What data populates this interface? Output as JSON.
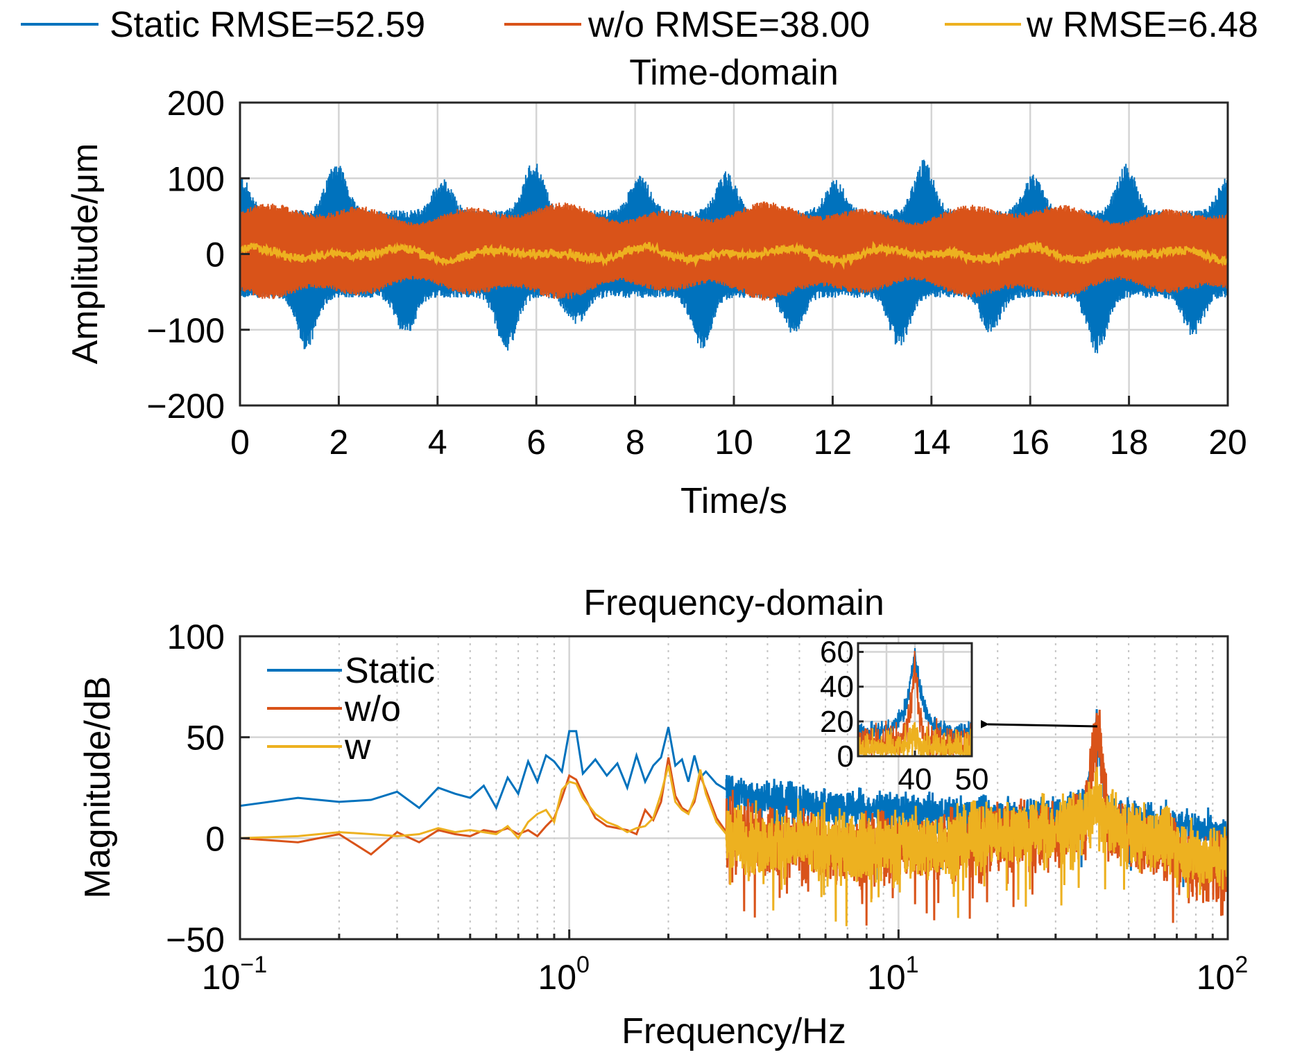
{
  "colors": {
    "static": "#0072BD",
    "wo": "#D95319",
    "w": "#EDB120",
    "axis": "#262626",
    "grid": "#d4d4d4"
  },
  "top_legend": [
    {
      "label": "Static RMSE=52.59",
      "color": "#0072BD"
    },
    {
      "label": "w/o RMSE=38.00",
      "color": "#D95319"
    },
    {
      "label": "w RMSE=6.48",
      "color": "#EDB120"
    }
  ],
  "chart_data": [
    {
      "type": "line",
      "title": "Time-domain",
      "xlabel": "Time/s",
      "ylabel": "Amplitude/μm",
      "xlim": [
        0,
        20
      ],
      "ylim": [
        -200,
        200
      ],
      "xticks": [
        "0",
        "2",
        "4",
        "6",
        "8",
        "10",
        "12",
        "14",
        "16",
        "18",
        "20"
      ],
      "yticks": [
        "200",
        "100",
        "0",
        "−100",
        "−200"
      ],
      "grid": true,
      "legend_position": "top",
      "series": [
        {
          "name": "Static",
          "rmse": 52.59,
          "envelope_peaks_x": [
            0.0,
            1.35,
            1.95,
            3.35,
            4.1,
            5.4,
            5.95,
            6.8,
            8.1,
            9.35,
            9.85,
            11.2,
            12.05,
            13.35,
            13.85,
            15.2,
            16.05,
            17.35,
            17.95,
            19.3,
            20.0
          ],
          "envelope_peaks_y": [
            105,
            -128,
            125,
            -108,
            100,
            -128,
            125,
            -95,
            108,
            -125,
            110,
            -108,
            100,
            -125,
            125,
            -105,
            105,
            -132,
            120,
            -110,
            105
          ],
          "typical_band": [
            -60,
            60
          ]
        },
        {
          "name": "w/o",
          "rmse": 38.0,
          "typical_band": [
            -60,
            65
          ]
        },
        {
          "name": "w",
          "rmse": 6.48,
          "typical_band": [
            -15,
            20
          ]
        }
      ]
    },
    {
      "type": "line",
      "title": "Frequency-domain",
      "xlabel": "Frequency/Hz",
      "ylabel": "Magnitude/dB",
      "xscale": "log",
      "xlim": [
        0.1,
        100
      ],
      "ylim": [
        -50,
        100
      ],
      "xticks": [
        {
          "base": "10",
          "exp": "−1"
        },
        {
          "base": "10",
          "exp": "0"
        },
        {
          "base": "10",
          "exp": "1"
        },
        {
          "base": "10",
          "exp": "2"
        }
      ],
      "yticks": [
        "100",
        "50",
        "0",
        "−50"
      ],
      "grid": true,
      "legend_position": "top-left",
      "series": [
        {
          "name": "Static",
          "x": [
            0.1,
            0.15,
            0.2,
            0.25,
            0.3,
            0.35,
            0.4,
            0.45,
            0.5,
            0.55,
            0.6,
            0.65,
            0.7,
            0.75,
            0.8,
            0.85,
            0.9,
            0.95,
            1.0,
            1.05,
            1.1,
            1.2,
            1.3,
            1.4,
            1.5,
            1.6,
            1.7,
            1.8,
            1.9,
            2.0,
            2.1,
            2.2,
            2.3,
            2.4,
            2.5,
            2.6,
            2.8,
            3.0,
            3.5,
            4,
            5,
            7,
            10,
            15,
            20,
            30,
            35,
            38,
            40,
            42,
            45,
            50,
            60,
            70,
            80,
            100
          ],
          "y": [
            16,
            20,
            18,
            19,
            23,
            15,
            25,
            22,
            20,
            26,
            15,
            30,
            22,
            38,
            28,
            41,
            38,
            33,
            53,
            53,
            32,
            39,
            31,
            37,
            25,
            41,
            28,
            36,
            40,
            55,
            36,
            39,
            28,
            41,
            30,
            33,
            27,
            24,
            21,
            19,
            17,
            15,
            13,
            12,
            11,
            12,
            14,
            18,
            58,
            18,
            12,
            10,
            8,
            6,
            4,
            0
          ]
        },
        {
          "name": "w/o",
          "x": [
            0.1,
            0.15,
            0.2,
            0.25,
            0.3,
            0.35,
            0.4,
            0.45,
            0.5,
            0.55,
            0.6,
            0.65,
            0.7,
            0.75,
            0.8,
            0.85,
            0.9,
            0.95,
            1.0,
            1.05,
            1.1,
            1.2,
            1.3,
            1.4,
            1.5,
            1.6,
            1.7,
            1.8,
            1.9,
            2.0,
            2.1,
            2.2,
            2.3,
            2.4,
            2.5,
            2.6,
            2.8,
            3.0,
            3.5,
            4,
            5,
            7,
            10,
            15,
            20,
            30,
            35,
            38,
            40,
            42,
            45,
            50,
            60,
            70,
            80,
            100
          ],
          "y": [
            0,
            -2,
            2,
            -8,
            3,
            -2,
            4,
            2,
            1,
            4,
            3,
            5,
            2,
            4,
            1,
            6,
            10,
            20,
            31,
            29,
            22,
            10,
            6,
            5,
            4,
            2,
            14,
            9,
            18,
            40,
            21,
            15,
            13,
            18,
            31,
            24,
            10,
            3,
            0,
            -2,
            -3,
            -6,
            -5,
            -3,
            0,
            2,
            4,
            12,
            58,
            12,
            4,
            2,
            -2,
            -6,
            -12,
            -15
          ]
        },
        {
          "name": "w",
          "x": [
            0.1,
            0.15,
            0.2,
            0.25,
            0.3,
            0.35,
            0.4,
            0.45,
            0.5,
            0.55,
            0.6,
            0.65,
            0.7,
            0.75,
            0.8,
            0.85,
            0.9,
            0.95,
            1.0,
            1.05,
            1.1,
            1.2,
            1.3,
            1.4,
            1.5,
            1.6,
            1.7,
            1.8,
            1.9,
            2.0,
            2.1,
            2.2,
            2.3,
            2.4,
            2.5,
            2.6,
            2.8,
            3.0,
            3.5,
            4,
            5,
            7,
            10,
            15,
            20,
            30,
            35,
            38,
            40,
            42,
            45,
            50,
            60,
            70,
            80,
            100
          ],
          "y": [
            0,
            1,
            3,
            2,
            1,
            2,
            5,
            3,
            4,
            3,
            2,
            6,
            0,
            8,
            12,
            14,
            8,
            24,
            28,
            27,
            20,
            12,
            8,
            6,
            3,
            5,
            6,
            10,
            22,
            36,
            18,
            14,
            12,
            20,
            34,
            22,
            8,
            2,
            -2,
            -4,
            -3,
            -5,
            -4,
            -2,
            2,
            4,
            6,
            10,
            20,
            10,
            5,
            3,
            0,
            -4,
            -8,
            -10
          ]
        }
      ],
      "inset": {
        "xlim": [
          30,
          50
        ],
        "ylim": [
          0,
          65
        ],
        "xticks": [
          "40",
          "50"
        ],
        "yticks": [
          "60",
          "40",
          "20",
          "0"
        ],
        "peak_x": 40,
        "peak_y": 58
      }
    }
  ]
}
